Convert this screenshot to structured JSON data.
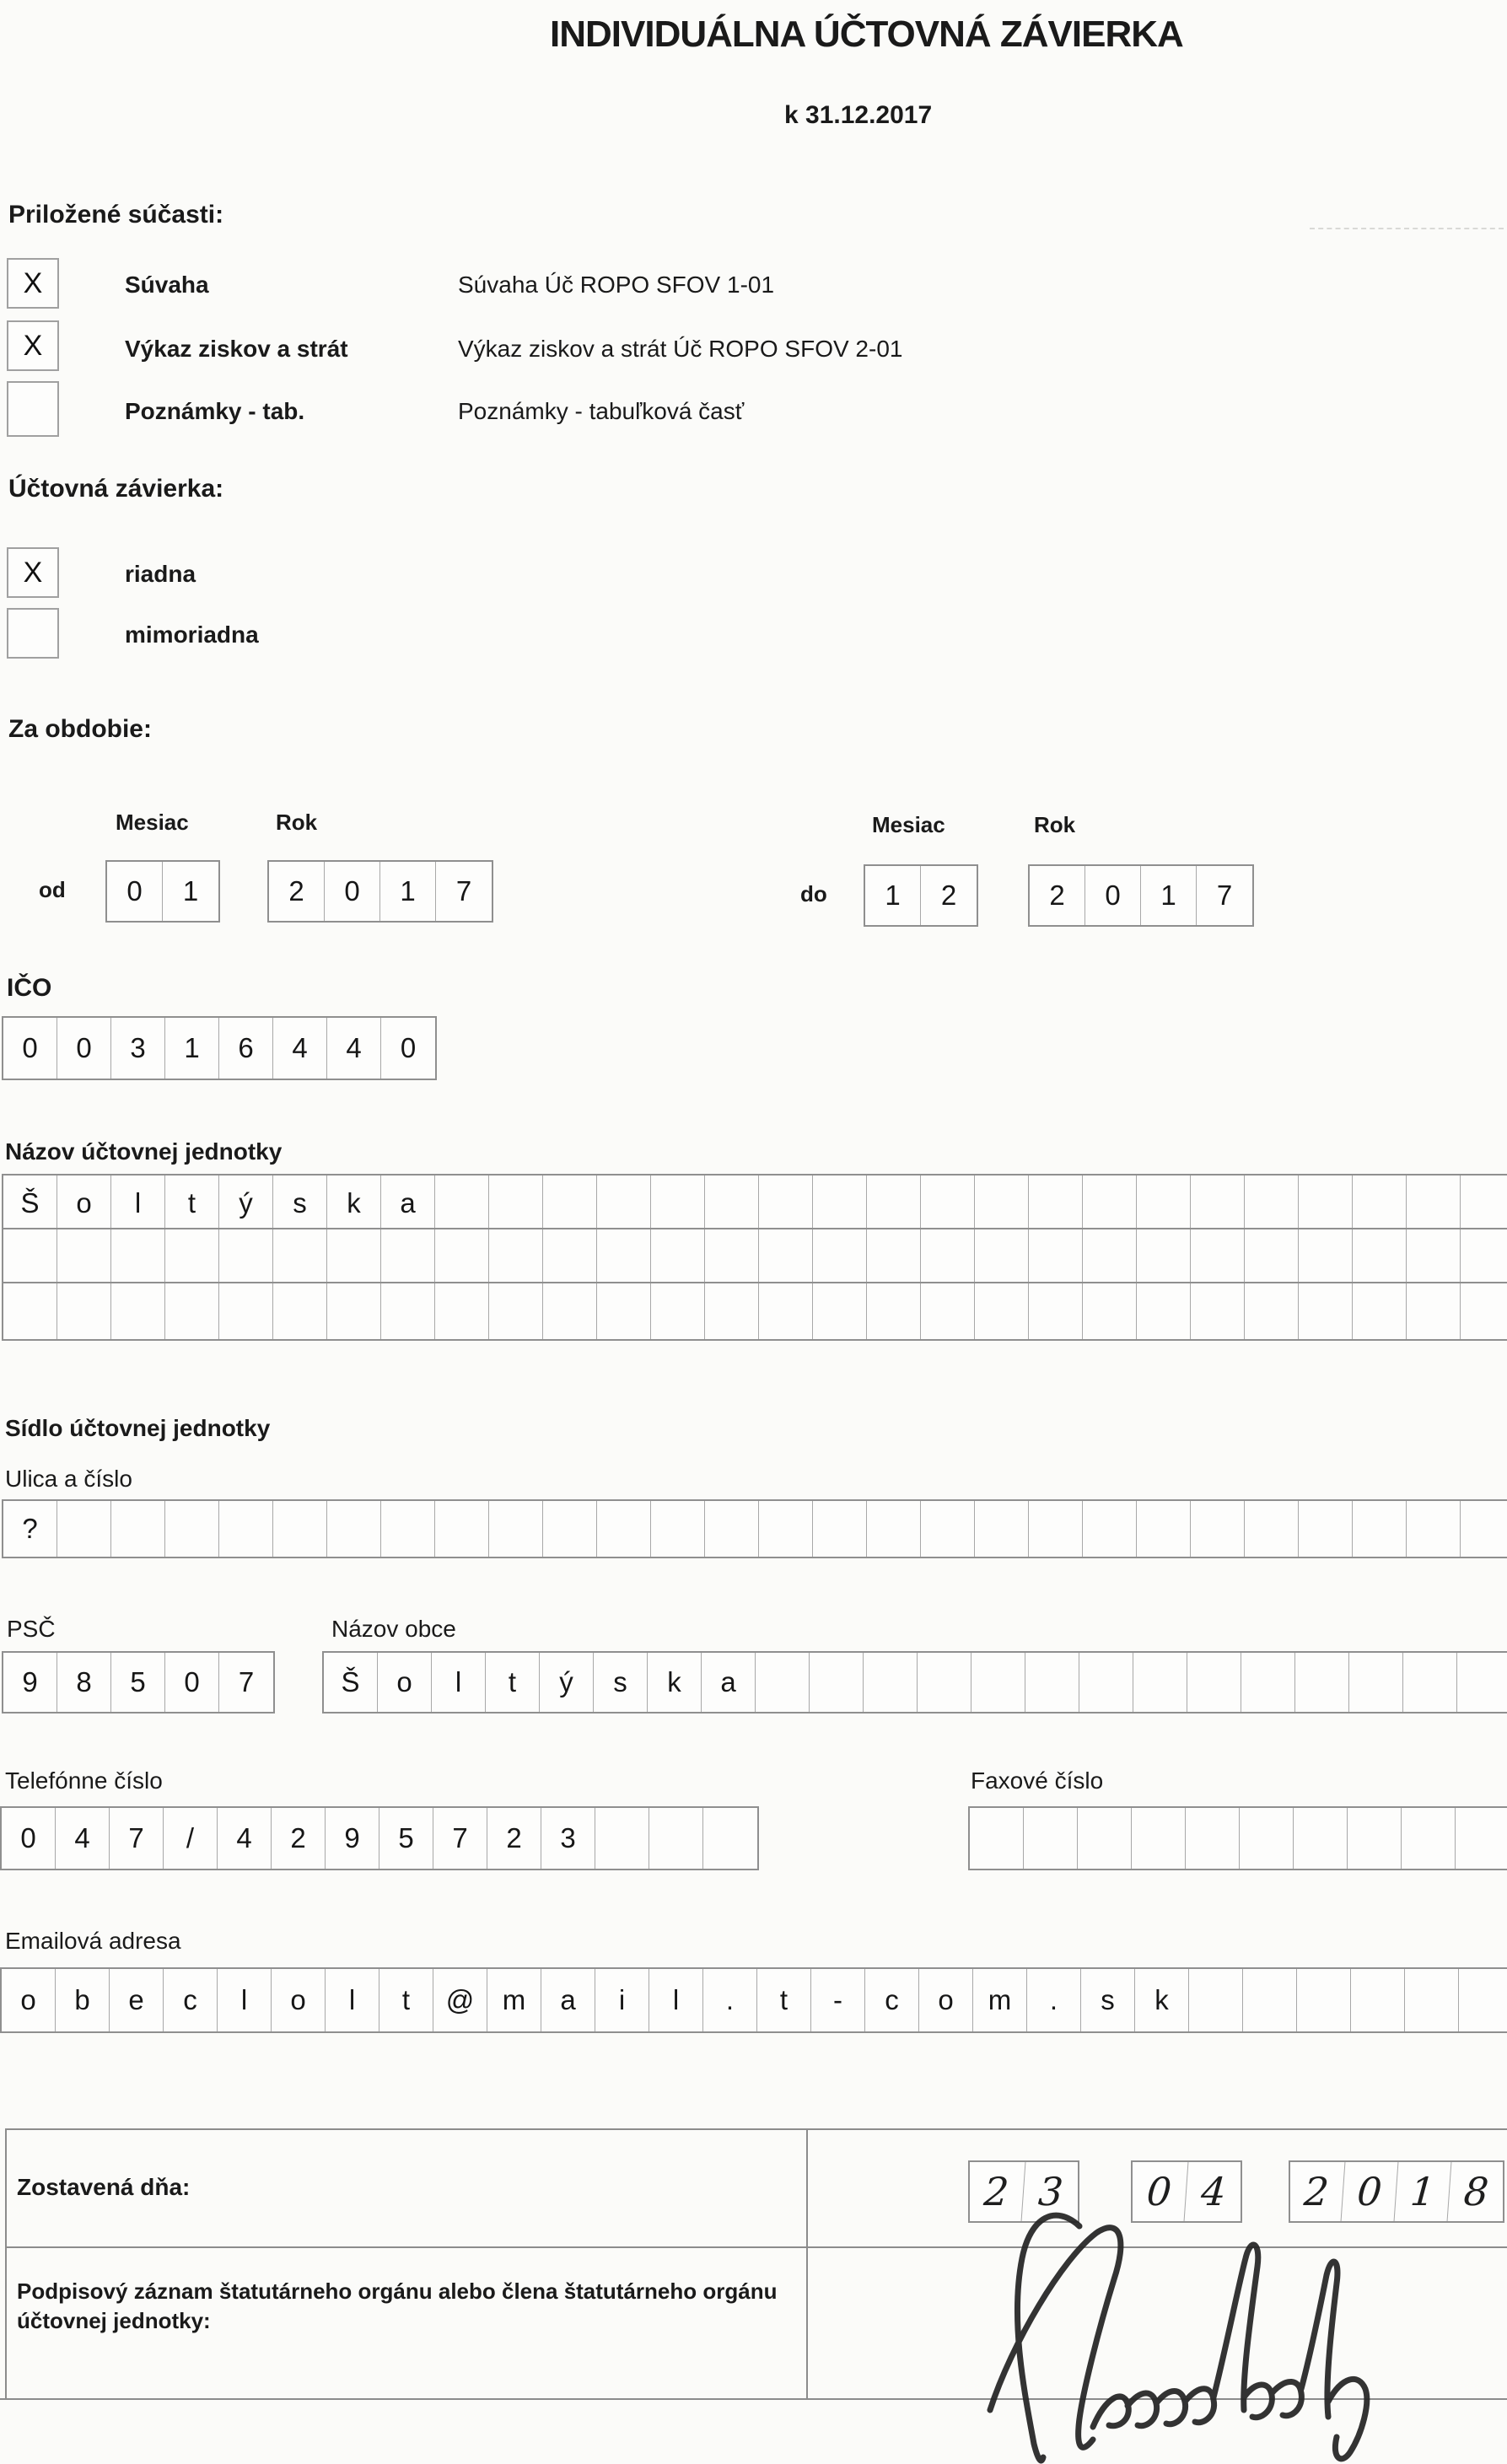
{
  "page": {
    "title": "INDIVIDUÁLNA ÚČTOVNÁ ZÁVIERKA",
    "subtitle": "k 31.12.2017"
  },
  "attachments": {
    "heading": "Priložené súčasti:",
    "items": [
      {
        "mark": "X",
        "label": "Súvaha",
        "description": "Súvaha Úč ROPO SFOV 1-01"
      },
      {
        "mark": "X",
        "label": "Výkaz ziskov a strát",
        "description": "Výkaz ziskov a strát Úč ROPO SFOV 2-01"
      },
      {
        "mark": "",
        "label": "Poznámky - tab.",
        "description": "Poznámky - tabuľková časť"
      }
    ]
  },
  "closing": {
    "heading": "Účtovná závierka:",
    "items": [
      {
        "mark": "X",
        "label": "riadna"
      },
      {
        "mark": "",
        "label": "mimoriadna"
      }
    ]
  },
  "period": {
    "heading": "Za obdobie:",
    "month_label": "Mesiac",
    "year_label": "Rok",
    "from_label": "od",
    "to_label": "do",
    "from_month": [
      "0",
      "1"
    ],
    "from_year": [
      "2",
      "0",
      "1",
      "7"
    ],
    "to_month": [
      "1",
      "2"
    ],
    "to_year": [
      "2",
      "0",
      "1",
      "7"
    ]
  },
  "ico": {
    "label": "IČO",
    "digits": [
      "0",
      "0",
      "3",
      "1",
      "6",
      "4",
      "4",
      "0"
    ]
  },
  "entity_name": {
    "heading": "Názov účtovnej jednotky",
    "row1": [
      "Š",
      "o",
      "l",
      "t",
      "ý",
      "s",
      "k",
      "a",
      "",
      "",
      "",
      "",
      "",
      "",
      "",
      "",
      "",
      "",
      "",
      "",
      "",
      "",
      "",
      "",
      "",
      "",
      "",
      ""
    ],
    "row2": [
      "",
      "",
      "",
      "",
      "",
      "",
      "",
      "",
      "",
      "",
      "",
      "",
      "",
      "",
      "",
      "",
      "",
      "",
      "",
      "",
      "",
      "",
      "",
      "",
      "",
      "",
      "",
      ""
    ],
    "row3": [
      "",
      "",
      "",
      "",
      "",
      "",
      "",
      "",
      "",
      "",
      "",
      "",
      "",
      "",
      "",
      "",
      "",
      "",
      "",
      "",
      "",
      "",
      "",
      "",
      "",
      "",
      "",
      ""
    ]
  },
  "address": {
    "heading": "Sídlo účtovnej jednotky",
    "street_label": "Ulica a číslo",
    "street": [
      "?",
      "",
      "",
      "",
      "",
      "",
      "",
      "",
      "",
      "",
      "",
      "",
      "",
      "",
      "",
      "",
      "",
      "",
      "",
      "",
      "",
      "",
      "",
      "",
      "",
      "",
      "",
      ""
    ],
    "psc_label": "PSČ",
    "psc": [
      "9",
      "8",
      "5",
      "0",
      "7"
    ],
    "city_label": "Názov obce",
    "city": [
      "Š",
      "o",
      "l",
      "t",
      "ý",
      "s",
      "k",
      "a",
      "",
      "",
      "",
      "",
      "",
      "",
      "",
      "",
      "",
      "",
      "",
      "",
      "",
      ""
    ]
  },
  "contact": {
    "phone_label": "Telefónne číslo",
    "phone": [
      "0",
      "4",
      "7",
      "/",
      "4",
      "2",
      "9",
      "5",
      "7",
      "2",
      "3",
      "",
      "",
      ""
    ],
    "fax_label": "Faxové číslo",
    "fax": [
      "",
      "",
      "",
      "",
      "",
      "",
      "",
      "",
      "",
      ""
    ],
    "email_label": "Emailová adresa",
    "email": [
      "o",
      "b",
      "e",
      "c",
      "l",
      "o",
      "l",
      "t",
      "@",
      "m",
      "a",
      "i",
      "l",
      ".",
      "t",
      "-",
      "c",
      "o",
      "m",
      ".",
      "s",
      "k",
      "",
      "",
      "",
      "",
      "",
      ""
    ]
  },
  "footer": {
    "compiled_label": "Zostavená dňa:",
    "date_day": [
      "2",
      "3"
    ],
    "date_month": [
      "0",
      "4"
    ],
    "date_year": [
      "2",
      "0",
      "1",
      "8"
    ],
    "signature_label": "Podpisový záznam štatutárneho orgánu alebo člena štatutárneho orgánu účtovnej jednotky:"
  }
}
